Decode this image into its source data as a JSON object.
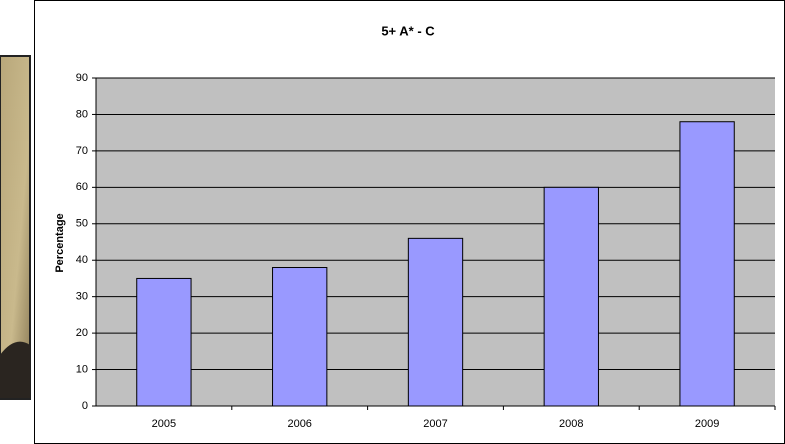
{
  "chart_data": {
    "type": "bar",
    "title": "5+ A* - C",
    "y_label": "Percentage",
    "categories": [
      "2005",
      "2006",
      "2007",
      "2008",
      "2009"
    ],
    "values": [
      35,
      38,
      46,
      60,
      78
    ],
    "color": "#9999ff",
    "ylim": [
      0,
      90
    ],
    "yticks": [
      0,
      10,
      20,
      30,
      40,
      50,
      60,
      70,
      80,
      90
    ],
    "grid": true
  }
}
